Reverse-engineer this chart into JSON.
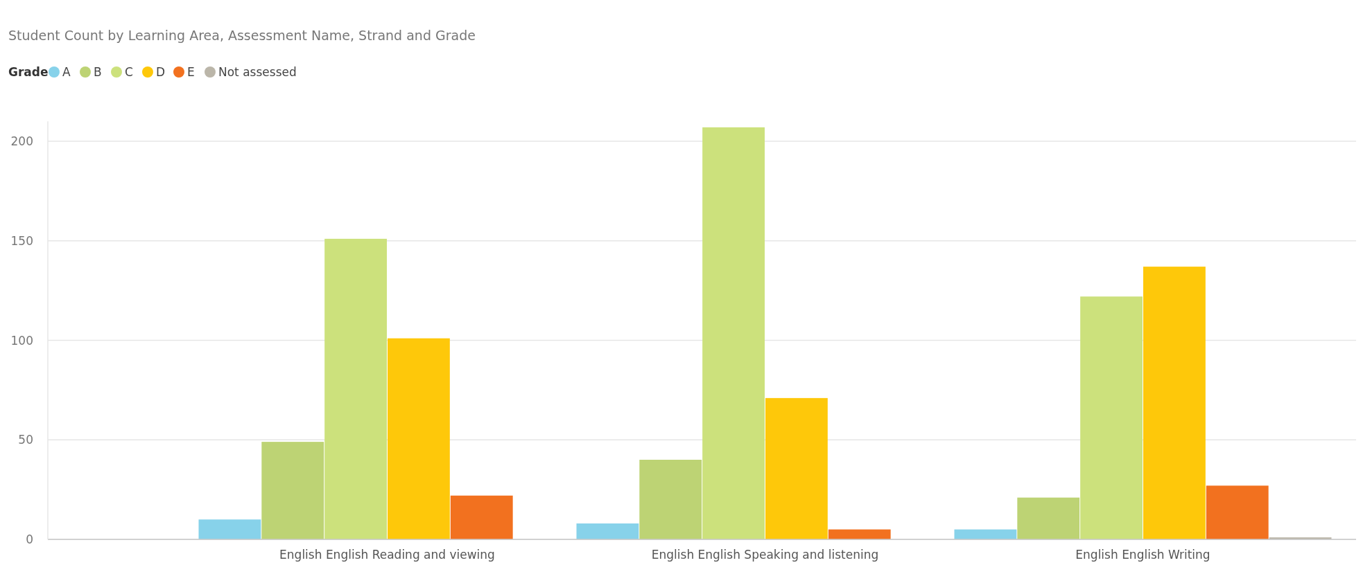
{
  "chart_data": {
    "type": "bar",
    "title": "Student Count by Learning Area, Assessment Name, Strand and Grade",
    "legend_title": "Grade",
    "categories": [
      "English English Reading and viewing",
      "English English Speaking and listening",
      "English English Writing"
    ],
    "series": [
      {
        "name": "A",
        "color": "#87d2ea",
        "values": [
          10,
          8,
          5
        ]
      },
      {
        "name": "B",
        "color": "#bdd374",
        "values": [
          49,
          40,
          21
        ]
      },
      {
        "name": "C",
        "color": "#cce17c",
        "values": [
          151,
          207,
          122
        ]
      },
      {
        "name": "D",
        "color": "#fec80a",
        "values": [
          101,
          71,
          137
        ]
      },
      {
        "name": "E",
        "color": "#f2711f",
        "values": [
          22,
          5,
          27
        ]
      },
      {
        "name": "Not assessed",
        "color": "#bbb6a9",
        "values": [
          null,
          null,
          1
        ]
      }
    ],
    "ylim": [
      0,
      210
    ],
    "yticks": [
      0,
      50,
      100,
      150,
      200
    ],
    "grid": "y",
    "legend": "top left"
  }
}
